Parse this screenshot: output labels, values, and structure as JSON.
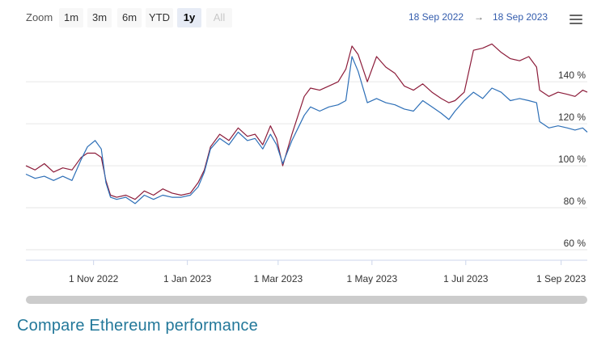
{
  "toolbar": {
    "zoom_label": "Zoom",
    "buttons": [
      "1m",
      "3m",
      "6m",
      "YTD",
      "1y",
      "All"
    ],
    "active": "1y",
    "disabled": "All",
    "range_from": "18 Sep 2022",
    "range_arrow": "→",
    "range_to": "18 Sep 2023",
    "menu_icon": "hamburger-menu-icon"
  },
  "footer": {
    "link_text": "Compare Ethereum performance"
  },
  "colors": {
    "series_red": "#8c1c3a",
    "series_blue": "#2d6fb7",
    "grid": "#e6e6e6",
    "axis_text": "#333333",
    "link": "#23789a"
  },
  "chart_data": {
    "type": "line",
    "x_start": "2022-09-18",
    "x_end": "2023-09-18",
    "ylim": [
      55,
      162
    ],
    "y_ticks": [
      60,
      80,
      100,
      120,
      140
    ],
    "y_tick_labels": [
      "60 %",
      "80 %",
      "100 %",
      "120 %",
      "140 %"
    ],
    "x_ticks": [
      "2022-11-01",
      "2023-01-01",
      "2023-03-01",
      "2023-05-01",
      "2023-07-01",
      "2023-09-01"
    ],
    "x_tick_labels": [
      "1 Nov 2022",
      "1 Jan 2023",
      "1 Mar 2023",
      "1 May 2023",
      "1 Jul 2023",
      "1 Sep 2023"
    ],
    "grid": true,
    "series": [
      {
        "color": "#8c1c3a",
        "x": [
          "2022-09-18",
          "2022-09-24",
          "2022-09-30",
          "2022-10-06",
          "2022-10-12",
          "2022-10-18",
          "2022-10-24",
          "2022-10-28",
          "2022-11-02",
          "2022-11-06",
          "2022-11-09",
          "2022-11-12",
          "2022-11-16",
          "2022-11-22",
          "2022-11-28",
          "2022-12-04",
          "2022-12-10",
          "2022-12-16",
          "2022-12-22",
          "2022-12-28",
          "2023-01-03",
          "2023-01-08",
          "2023-01-12",
          "2023-01-16",
          "2023-01-22",
          "2023-01-28",
          "2023-02-03",
          "2023-02-09",
          "2023-02-14",
          "2023-02-19",
          "2023-02-24",
          "2023-02-28",
          "2023-03-04",
          "2023-03-10",
          "2023-03-14",
          "2023-03-18",
          "2023-03-22",
          "2023-03-28",
          "2023-04-03",
          "2023-04-09",
          "2023-04-14",
          "2023-04-18",
          "2023-04-22",
          "2023-04-28",
          "2023-05-04",
          "2023-05-10",
          "2023-05-16",
          "2023-05-22",
          "2023-05-28",
          "2023-06-03",
          "2023-06-09",
          "2023-06-15",
          "2023-06-20",
          "2023-06-24",
          "2023-06-30",
          "2023-07-06",
          "2023-07-12",
          "2023-07-18",
          "2023-07-24",
          "2023-07-30",
          "2023-08-05",
          "2023-08-11",
          "2023-08-16",
          "2023-08-18",
          "2023-08-24",
          "2023-08-30",
          "2023-09-05",
          "2023-09-10",
          "2023-09-15",
          "2023-09-18"
        ],
        "values": [
          100,
          98,
          101,
          97,
          99,
          98,
          104,
          106,
          106,
          104,
          93,
          86,
          85,
          86,
          84,
          88,
          86,
          89,
          87,
          86,
          87,
          92,
          98,
          109,
          115,
          112,
          118,
          114,
          115,
          110,
          119,
          113,
          100,
          115,
          124,
          133,
          137,
          136,
          138,
          140,
          146,
          157,
          153,
          140,
          152,
          147,
          144,
          138,
          136,
          139,
          135,
          132,
          130,
          131,
          135,
          155,
          156,
          158,
          154,
          151,
          150,
          152,
          147,
          136,
          133,
          135,
          134,
          133,
          136,
          135
        ]
      },
      {
        "color": "#2d6fb7",
        "x": [
          "2022-09-18",
          "2022-09-24",
          "2022-09-30",
          "2022-10-06",
          "2022-10-12",
          "2022-10-18",
          "2022-10-24",
          "2022-10-28",
          "2022-11-02",
          "2022-11-06",
          "2022-11-09",
          "2022-11-12",
          "2022-11-16",
          "2022-11-22",
          "2022-11-28",
          "2022-12-04",
          "2022-12-10",
          "2022-12-16",
          "2022-12-22",
          "2022-12-28",
          "2023-01-03",
          "2023-01-08",
          "2023-01-12",
          "2023-01-16",
          "2023-01-22",
          "2023-01-28",
          "2023-02-03",
          "2023-02-09",
          "2023-02-14",
          "2023-02-19",
          "2023-02-24",
          "2023-02-28",
          "2023-03-04",
          "2023-03-10",
          "2023-03-14",
          "2023-03-18",
          "2023-03-22",
          "2023-03-28",
          "2023-04-03",
          "2023-04-09",
          "2023-04-14",
          "2023-04-18",
          "2023-04-22",
          "2023-04-28",
          "2023-05-04",
          "2023-05-10",
          "2023-05-16",
          "2023-05-22",
          "2023-05-28",
          "2023-06-03",
          "2023-06-09",
          "2023-06-15",
          "2023-06-20",
          "2023-06-24",
          "2023-06-30",
          "2023-07-06",
          "2023-07-12",
          "2023-07-18",
          "2023-07-24",
          "2023-07-30",
          "2023-08-05",
          "2023-08-11",
          "2023-08-16",
          "2023-08-18",
          "2023-08-24",
          "2023-08-30",
          "2023-09-05",
          "2023-09-10",
          "2023-09-15",
          "2023-09-18"
        ],
        "values": [
          96,
          94,
          95,
          93,
          95,
          93,
          103,
          109,
          112,
          108,
          92,
          85,
          84,
          85,
          82,
          86,
          84,
          86,
          85,
          85,
          86,
          90,
          97,
          108,
          113,
          110,
          116,
          112,
          113,
          108,
          115,
          110,
          101,
          112,
          118,
          124,
          128,
          126,
          128,
          129,
          131,
          152,
          145,
          130,
          132,
          130,
          129,
          127,
          126,
          131,
          128,
          125,
          122,
          126,
          131,
          135,
          132,
          137,
          135,
          131,
          132,
          131,
          130,
          121,
          118,
          119,
          118,
          117,
          118,
          116
        ]
      }
    ]
  }
}
